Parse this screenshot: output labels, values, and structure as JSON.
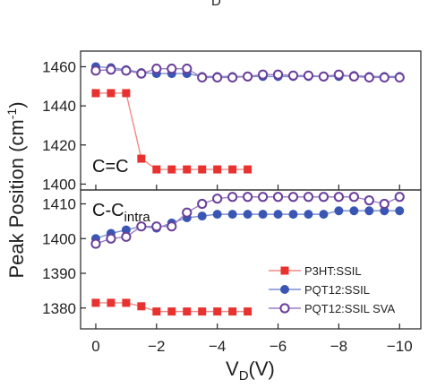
{
  "top_fragment": "D",
  "chart_data": {
    "type": "line",
    "xlabel_main": "V",
    "xlabel_sub": "D",
    "xlabel_tail": "(V)",
    "ylabel_main": "Peak Position (cm",
    "ylabel_sup": "-1",
    "ylabel_tail": ")",
    "xlim": [
      0.5,
      -10.7
    ],
    "xticks": [
      {
        "value": 0,
        "label": "0"
      },
      {
        "value": -2,
        "label": "−2"
      },
      {
        "value": -4,
        "label": "−4"
      },
      {
        "value": -6,
        "label": "−6"
      },
      {
        "value": -8,
        "label": "−8"
      },
      {
        "value": -10,
        "label": "−10"
      }
    ],
    "panels": [
      {
        "id": "top",
        "label": "C=C",
        "label_sub": "",
        "ylim": [
          1397,
          1468
        ],
        "yticks": [
          1400,
          1420,
          1440,
          1460
        ],
        "series": [
          {
            "key": "p3ht",
            "x": [
              0,
              -0.5,
              -1,
              -1.5,
              -2,
              -2.5,
              -3,
              -3.5,
              -4,
              -4.5,
              -5
            ],
            "y": [
              1446.5,
              1446.5,
              1446.5,
              1413,
              1407.5,
              1407.5,
              1407.5,
              1407.5,
              1407.5,
              1407.5,
              1407.5
            ]
          },
          {
            "key": "pqt",
            "x": [
              0,
              -0.5,
              -1,
              -1.5,
              -2,
              -2.5,
              -3,
              -3.5,
              -4,
              -4.5,
              -5,
              -5.5,
              -6,
              -6.5,
              -7,
              -7.5,
              -8,
              -8.5,
              -9,
              -9.5,
              -10
            ],
            "y": [
              1460,
              1459.5,
              1458.5,
              1457,
              1456.5,
              1456.5,
              1456.5,
              1455,
              1455,
              1455,
              1455,
              1455,
              1455,
              1455,
              1455,
              1455,
              1455,
              1455.5,
              1455,
              1455,
              1455
            ]
          },
          {
            "key": "sva",
            "x": [
              0,
              -0.5,
              -1,
              -1.5,
              -2,
              -2.5,
              -3,
              -3.5,
              -4,
              -4.5,
              -5,
              -5.5,
              -6,
              -6.5,
              -7,
              -7.5,
              -8,
              -8.5,
              -9,
              -9.5,
              -10
            ],
            "y": [
              1458,
              1458.5,
              1458,
              1456.5,
              1459,
              1459,
              1459,
              1454.5,
              1454.5,
              1454.5,
              1455,
              1456,
              1456,
              1455.5,
              1455.5,
              1455,
              1456,
              1455,
              1454.5,
              1454.5,
              1454.5
            ]
          }
        ]
      },
      {
        "id": "bottom",
        "label": "C-C",
        "label_sub": "intra",
        "ylim": [
          1374,
          1414
        ],
        "yticks": [
          1380,
          1390,
          1400,
          1410
        ],
        "series": [
          {
            "key": "p3ht",
            "x": [
              0,
              -0.5,
              -1,
              -1.5,
              -2,
              -2.5,
              -3,
              -3.5,
              -4,
              -4.5,
              -5
            ],
            "y": [
              1381.5,
              1381.5,
              1381.5,
              1380.5,
              1379,
              1379,
              1379,
              1379,
              1379,
              1379,
              1379
            ]
          },
          {
            "key": "pqt",
            "x": [
              0,
              -0.5,
              -1,
              -1.5,
              -2,
              -2.5,
              -3,
              -3.5,
              -4,
              -4.5,
              -5,
              -5.5,
              -6,
              -6.5,
              -7,
              -7.5,
              -8,
              -8.5,
              -9,
              -9.5,
              -10
            ],
            "y": [
              1400,
              1401.5,
              1402.5,
              1403.5,
              1403,
              1404.5,
              1406,
              1406.5,
              1407,
              1407,
              1407,
              1407,
              1407,
              1407,
              1407,
              1407,
              1408,
              1408,
              1408,
              1408,
              1408
            ]
          },
          {
            "key": "sva",
            "x": [
              0,
              -0.5,
              -1,
              -1.5,
              -2,
              -2.5,
              -3,
              -3.5,
              -4,
              -4.5,
              -5,
              -5.5,
              -6,
              -6.5,
              -7,
              -7.5,
              -8,
              -8.5,
              -9,
              -9.5,
              -10
            ],
            "y": [
              1398.5,
              1400,
              1400.5,
              1403.5,
              1403.5,
              1403.5,
              1407.5,
              1410,
              1411.5,
              1412,
              1412,
              1412,
              1412,
              1412,
              1412,
              1412,
              1412,
              1412,
              1411,
              1410,
              1412
            ]
          }
        ]
      }
    ],
    "series_styles": [
      {
        "key": "p3ht",
        "name": "P3HT:SSIL",
        "color": "#e8322f",
        "line_color": "#f08a86",
        "marker": "square"
      },
      {
        "key": "pqt",
        "name": "PQT12:SSIL",
        "color": "#3a56b4",
        "line_color": "#7a8fd0",
        "marker": "filled-circle"
      },
      {
        "key": "sva",
        "name": "PQT12:SSIL SVA",
        "color": "#6a3f9a",
        "line_color": "#9a7ec2",
        "marker": "open-circle"
      }
    ],
    "legend_position": "bottom-right"
  }
}
